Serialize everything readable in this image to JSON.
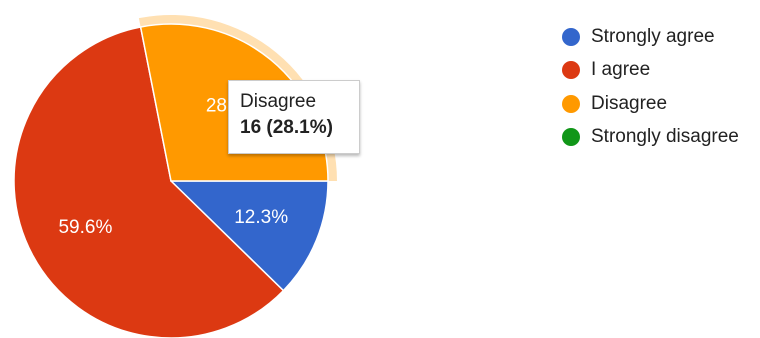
{
  "chart_data": {
    "type": "pie",
    "categories": [
      "Strongly agree",
      "I agree",
      "Disagree",
      "Strongly disagree"
    ],
    "values": [
      12.3,
      59.6,
      28.1,
      0
    ],
    "colors": [
      "#3366cc",
      "#dc3912",
      "#ff9900",
      "#109618"
    ],
    "slice_labels": [
      "12.3%",
      "59.6%",
      "28.1%",
      ""
    ],
    "highlighted_slice": "Disagree",
    "legend_position": "right"
  },
  "tooltip": {
    "name": "Disagree",
    "value": "16 (28.1%)"
  }
}
